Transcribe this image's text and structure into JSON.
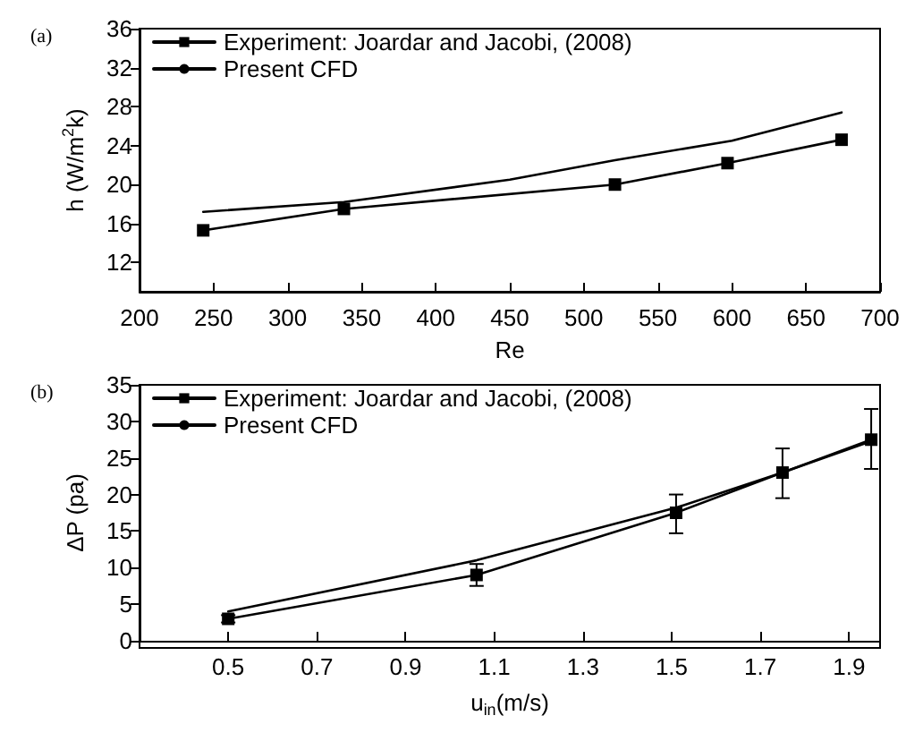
{
  "chart_data": [
    {
      "type": "line",
      "title": "(a)",
      "xlabel": "Re",
      "ylabel": "h (W/m$^{2}$k)",
      "xlim": [
        200,
        700
      ],
      "xticks": [
        200,
        250,
        300,
        350,
        400,
        450,
        500,
        550,
        600,
        650,
        700
      ],
      "ylim": [
        9,
        36
      ],
      "yticks": [
        12,
        16,
        20,
        24,
        28,
        32,
        36
      ],
      "grid": false,
      "legend": "top left",
      "series": [
        {
          "name": "Experiment: Joardar and Jacobi, (2008)",
          "color": "#000000",
          "marker": "square",
          "x": [
            243,
            338,
            521,
            597,
            674
          ],
          "values": [
            15.3,
            17.5,
            20,
            22.2,
            24.6
          ]
        },
        {
          "name": "Present CFD",
          "color": "#000000",
          "marker": "none",
          "x": [
            243,
            338,
            450,
            521,
            600,
            674
          ],
          "values": [
            17.2,
            18.2,
            20.5,
            22.5,
            24.5,
            27.4
          ]
        }
      ]
    },
    {
      "type": "line",
      "title": "(b)",
      "xlabel": "u$_{in}$(m/s)",
      "ylabel": "ΔP (pa)",
      "xlim": [
        0.3,
        1.97
      ],
      "xticks": [
        0.5,
        0.7,
        0.9,
        1.1,
        1.3,
        1.5,
        1.7,
        1.9
      ],
      "ylim": [
        0,
        35
      ],
      "yticks": [
        0,
        5,
        10,
        15,
        20,
        25,
        30,
        35
      ],
      "grid": false,
      "legend": "top left",
      "series": [
        {
          "name": "Experiment: Joardar and Jacobi, (2008)",
          "color": "#000000",
          "marker": "square",
          "x": [
            0.5,
            1.06,
            1.51,
            1.75,
            1.95
          ],
          "values": [
            3,
            9,
            17.5,
            23,
            27.5
          ],
          "errors": [
            0.5,
            1.5,
            [
              14.7,
              20
            ],
            [
              19.5,
              26.3
            ],
            [
              23.5,
              31.7
            ]
          ]
        },
        {
          "name": "Present CFD",
          "color": "#000000",
          "marker": "none",
          "x": [
            0.5,
            1.06,
            1.51,
            1.75,
            1.95
          ],
          "values": [
            4,
            11,
            18.2,
            23,
            27.3
          ]
        }
      ]
    }
  ]
}
